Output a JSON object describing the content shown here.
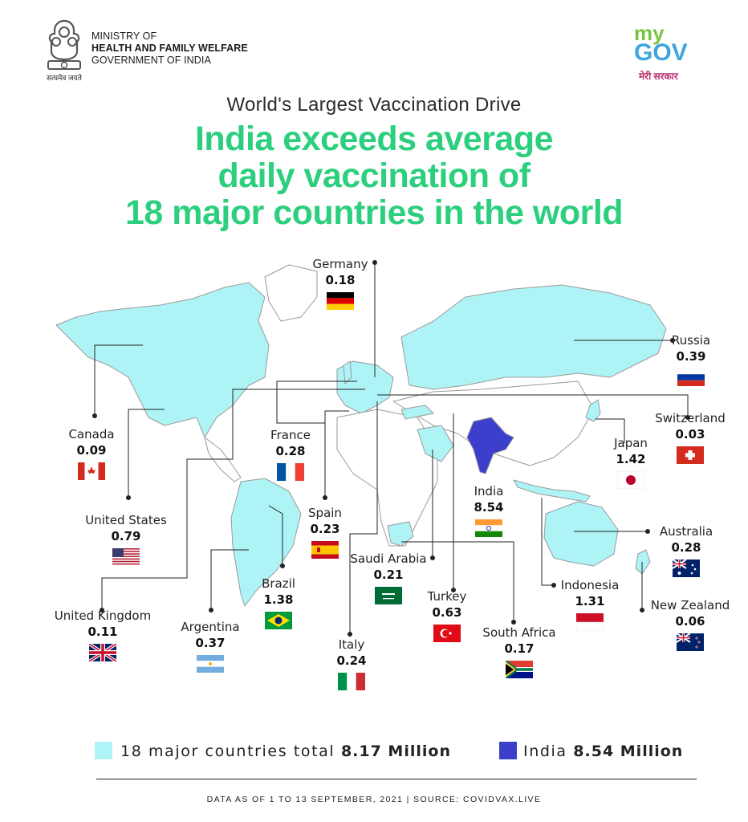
{
  "header": {
    "ministry_line1": "MINISTRY OF",
    "ministry_line2": "HEALTH AND FAMILY WELFARE",
    "ministry_line3": "GOVERNMENT OF INDIA",
    "emblem_motto": "सत्यमेव जयते",
    "mygov_logo_my": "my",
    "mygov_logo_gov": "GOV",
    "mygov_tagline": "मेरी सरकार"
  },
  "subtitle": "World's Largest Vaccination Drive",
  "headline": {
    "line1": "India exceeds average",
    "line2": "daily vaccination of",
    "line3": "18 major countries in the world"
  },
  "colors": {
    "headline": "#2ccf7e",
    "major_countries": "#aef4f6",
    "india": "#3b3fcc",
    "mygov_green": "#7cc242",
    "mygov_blue": "#3ea6dd",
    "mygov_orange": "#f5a623"
  },
  "countries": [
    {
      "name": "Germany",
      "value": "0.18",
      "flag": "germany-flag"
    },
    {
      "name": "Russia",
      "value": "0.39",
      "flag": "russia-flag"
    },
    {
      "name": "Canada",
      "value": "0.09",
      "flag": "canada-flag"
    },
    {
      "name": "France",
      "value": "0.28",
      "flag": "france-flag"
    },
    {
      "name": "Switzerland",
      "value": "0.03",
      "flag": "switzerland-flag"
    },
    {
      "name": "Japan",
      "value": "1.42",
      "flag": "japan-flag"
    },
    {
      "name": "United States",
      "value": "0.79",
      "flag": "usa-flag"
    },
    {
      "name": "India",
      "value": "8.54",
      "flag": "india-flag"
    },
    {
      "name": "Spain",
      "value": "0.23",
      "flag": "spain-flag"
    },
    {
      "name": "Australia",
      "value": "0.28",
      "flag": "australia-flag"
    },
    {
      "name": "Saudi Arabia",
      "value": "0.21",
      "flag": "saudi-flag"
    },
    {
      "name": "Brazil",
      "value": "1.38",
      "flag": "brazil-flag"
    },
    {
      "name": "Indonesia",
      "value": "1.31",
      "flag": "indonesia-flag"
    },
    {
      "name": "Turkey",
      "value": "0.63",
      "flag": "turkey-flag"
    },
    {
      "name": "New Zealand",
      "value": "0.06",
      "flag": "newzealand-flag"
    },
    {
      "name": "United Kingdom",
      "value": "0.11",
      "flag": "uk-flag"
    },
    {
      "name": "Argentina",
      "value": "0.37",
      "flag": "argentina-flag"
    },
    {
      "name": "South Africa",
      "value": "0.17",
      "flag": "southafrica-flag"
    },
    {
      "name": "Italy",
      "value": "0.24",
      "flag": "italy-flag"
    }
  ],
  "legend": {
    "major_label": "18 major countries total",
    "major_value": "8.17 Million",
    "india_label": "India",
    "india_value": "8.54 Million"
  },
  "footer": "DATA AS OF 1 TO 13 SEPTEMBER, 2021  |  SOURCE: COVIDVAX.LIVE"
}
